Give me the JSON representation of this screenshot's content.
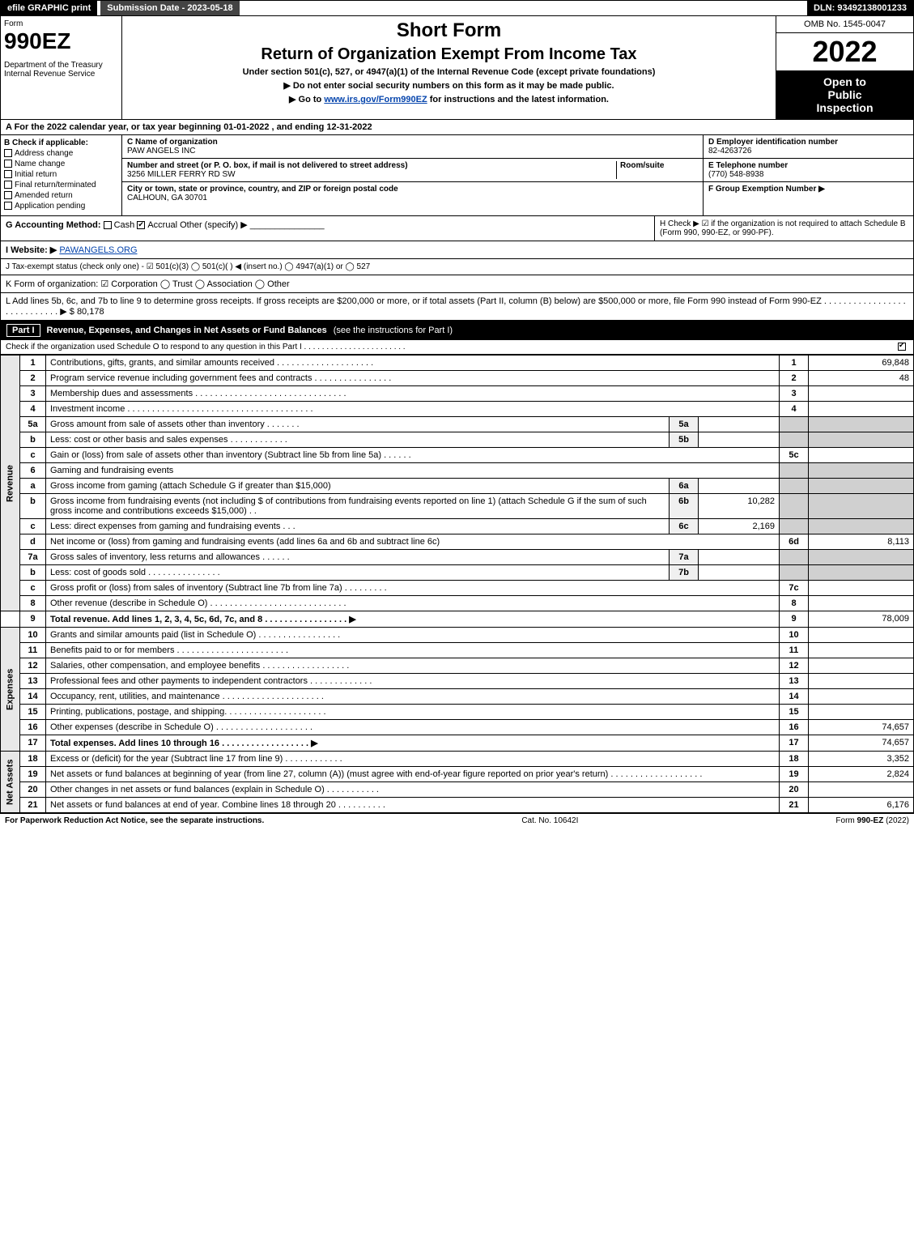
{
  "topbar": {
    "efile": "efile GRAPHIC print",
    "subdate": "Submission Date - 2023-05-18",
    "dln": "DLN: 93492138001233"
  },
  "header": {
    "form_word": "Form",
    "form_num": "990EZ",
    "dept": "Department of the Treasury\nInternal Revenue Service",
    "short_form": "Short Form",
    "return_title": "Return of Organization Exempt From Income Tax",
    "under_section": "Under section 501(c), 527, or 4947(a)(1) of the Internal Revenue Code (except private foundations)",
    "note1": "▶ Do not enter social security numbers on this form as it may be made public.",
    "note2_pre": "▶ Go to ",
    "note2_link": "www.irs.gov/Form990EZ",
    "note2_post": " for instructions and the latest information.",
    "omb": "OMB No. 1545-0047",
    "year": "2022",
    "open1": "Open to",
    "open2": "Public",
    "open3": "Inspection"
  },
  "line_a": "A  For the 2022 calendar year, or tax year beginning 01-01-2022  , and ending 12-31-2022",
  "section_b": {
    "hdr": "B  Check if applicable:",
    "opts": [
      "Address change",
      "Name change",
      "Initial return",
      "Final return/terminated",
      "Amended return",
      "Application pending"
    ]
  },
  "section_c": {
    "name_lbl": "C Name of organization",
    "name": "PAW ANGELS INC",
    "addr_lbl": "Number and street (or P. O. box, if mail is not delivered to street address)",
    "addr": "3256 MILLER FERRY RD SW",
    "room_lbl": "Room/suite",
    "city_lbl": "City or town, state or province, country, and ZIP or foreign postal code",
    "city": "CALHOUN, GA  30701"
  },
  "section_def": {
    "d_lbl": "D Employer identification number",
    "d_val": "82-4263726",
    "e_lbl": "E Telephone number",
    "e_val": "(770) 548-8938",
    "f_lbl": "F Group Exemption Number  ▶"
  },
  "section_g": {
    "lbl": "G Accounting Method:",
    "cash": "Cash",
    "accrual": "Accrual",
    "other": "Other (specify) ▶",
    "h_text": "H  Check ▶ ☑ if the organization is not required to attach Schedule B (Form 990, 990-EZ, or 990-PF)."
  },
  "section_i": {
    "lbl": "I Website: ▶",
    "val": "PAWANGELS.ORG"
  },
  "section_j": "J Tax-exempt status (check only one) - ☑ 501(c)(3)  ◯ 501(c)(  ) ◀ (insert no.)  ◯ 4947(a)(1) or  ◯ 527",
  "section_k": "K Form of organization:  ☑ Corporation  ◯ Trust  ◯ Association  ◯ Other",
  "section_l": {
    "text": "L Add lines 5b, 6c, and 7b to line 9 to determine gross receipts. If gross receipts are $200,000 or more, or if total assets (Part II, column (B) below) are $500,000 or more, file Form 990 instead of Form 990-EZ  . . . . . . . . . . . . . . . . . . . . . . . . . . . .  ▶",
    "val": "$ 80,178"
  },
  "part1": {
    "num": "Part I",
    "title": "Revenue, Expenses, and Changes in Net Assets or Fund Balances",
    "rest": "(see the instructions for Part I)",
    "check_o": "Check if the organization used Schedule O to respond to any question in this Part I . . . . . . . . . . . . . . . . . . . . . . .",
    "check_o_checked": true
  },
  "side_labels": {
    "revenue": "Revenue",
    "expenses": "Expenses",
    "net": "Net Assets"
  },
  "lines": {
    "l1": {
      "n": "1",
      "desc": "Contributions, gifts, grants, and similar amounts received  . . . . . . . . . . . . . . . . . . . .",
      "box": "1",
      "val": "69,848"
    },
    "l2": {
      "n": "2",
      "desc": "Program service revenue including government fees and contracts  . . . . . . . . . . . . . . . .",
      "box": "2",
      "val": "48"
    },
    "l3": {
      "n": "3",
      "desc": "Membership dues and assessments  . . . . . . . . . . . . . . . . . . . . . . . . . . . . . . .",
      "box": "3",
      "val": ""
    },
    "l4": {
      "n": "4",
      "desc": "Investment income . . . . . . . . . . . . . . . . . . . . . . . . . . . . . . . . . . . . . .",
      "box": "4",
      "val": ""
    },
    "l5a": {
      "n": "5a",
      "desc": "Gross amount from sale of assets other than inventory  . . . . . . .",
      "sub": "5a",
      "subval": ""
    },
    "l5b": {
      "n": "b",
      "desc": "Less: cost or other basis and sales expenses  . . . . . . . . . . . .",
      "sub": "5b",
      "subval": ""
    },
    "l5c": {
      "n": "c",
      "desc": "Gain or (loss) from sale of assets other than inventory (Subtract line 5b from line 5a)  . . . . . .",
      "box": "5c",
      "val": ""
    },
    "l6": {
      "n": "6",
      "desc": "Gaming and fundraising events"
    },
    "l6a": {
      "n": "a",
      "desc": "Gross income from gaming (attach Schedule G if greater than $15,000)",
      "sub": "6a",
      "subval": ""
    },
    "l6b": {
      "n": "b",
      "desc": "Gross income from fundraising events (not including $                of contributions from fundraising events reported on line 1) (attach Schedule G if the sum of such gross income and contributions exceeds $15,000)    .   .",
      "sub": "6b",
      "subval": "10,282"
    },
    "l6c": {
      "n": "c",
      "desc": "Less: direct expenses from gaming and fundraising events    .   .   .",
      "sub": "6c",
      "subval": "2,169"
    },
    "l6d": {
      "n": "d",
      "desc": "Net income or (loss) from gaming and fundraising events (add lines 6a and 6b and subtract line 6c)",
      "box": "6d",
      "val": "8,113"
    },
    "l7a": {
      "n": "7a",
      "desc": "Gross sales of inventory, less returns and allowances  . . . . . .",
      "sub": "7a",
      "subval": ""
    },
    "l7b": {
      "n": "b",
      "desc": "Less: cost of goods sold        .   .   .   .   .   .   .   .   .   .   .   .   .   .   .",
      "sub": "7b",
      "subval": ""
    },
    "l7c": {
      "n": "c",
      "desc": "Gross profit or (loss) from sales of inventory (Subtract line 7b from line 7a)  . . . . . . . . .",
      "box": "7c",
      "val": ""
    },
    "l8": {
      "n": "8",
      "desc": "Other revenue (describe in Schedule O) . . . . . . . . . . . . . . . . . . . . . . . . . . . .",
      "box": "8",
      "val": ""
    },
    "l9": {
      "n": "9",
      "desc": "Total revenue. Add lines 1, 2, 3, 4, 5c, 6d, 7c, and 8   .  .  .  .  .  .  .  .  .  .  .  .  .  .  .  .  .  ▶",
      "box": "9",
      "val": "78,009"
    },
    "l10": {
      "n": "10",
      "desc": "Grants and similar amounts paid (list in Schedule O)  .   .   .   .   .   .   .   .   .   .   .   .   .   .   .   .   .",
      "box": "10",
      "val": ""
    },
    "l11": {
      "n": "11",
      "desc": "Benefits paid to or for members       .   .   .   .   .   .   .   .   .   .   .   .   .   .   .   .   .   .   .   .   .   .   .",
      "box": "11",
      "val": ""
    },
    "l12": {
      "n": "12",
      "desc": "Salaries, other compensation, and employee benefits .   .   .   .   .   .   .   .   .   .   .   .   .   .   .   .   .   .",
      "box": "12",
      "val": ""
    },
    "l13": {
      "n": "13",
      "desc": "Professional fees and other payments to independent contractors  .   .   .   .   .   .   .   .   .   .   .   .   .",
      "box": "13",
      "val": ""
    },
    "l14": {
      "n": "14",
      "desc": "Occupancy, rent, utilities, and maintenance .   .   .   .   .   .   .   .   .   .   .   .   .   .   .   .   .   .   .   .   .",
      "box": "14",
      "val": ""
    },
    "l15": {
      "n": "15",
      "desc": "Printing, publications, postage, and shipping.   .   .   .   .   .   .   .   .   .   .   .   .   .   .   .   .   .   .   .   .",
      "box": "15",
      "val": ""
    },
    "l16": {
      "n": "16",
      "desc": "Other expenses (describe in Schedule O)     .   .   .   .   .   .   .   .   .   .   .   .   .   .   .   .   .   .   .   .",
      "box": "16",
      "val": "74,657"
    },
    "l17": {
      "n": "17",
      "desc": "Total expenses. Add lines 10 through 16      .   .   .   .   .   .   .   .   .   .   .   .   .   .   .   .   .   .  ▶",
      "box": "17",
      "val": "74,657"
    },
    "l18": {
      "n": "18",
      "desc": "Excess or (deficit) for the year (Subtract line 17 from line 9)        .   .   .   .   .   .   .   .   .   .   .   .",
      "box": "18",
      "val": "3,352"
    },
    "l19": {
      "n": "19",
      "desc": "Net assets or fund balances at beginning of year (from line 27, column (A)) (must agree with end-of-year figure reported on prior year's return) .   .   .   .   .   .   .   .   .   .   .   .   .   .   .   .   .   .   .",
      "box": "19",
      "val": "2,824"
    },
    "l20": {
      "n": "20",
      "desc": "Other changes in net assets or fund balances (explain in Schedule O) .   .   .   .   .   .   .   .   .   .   .",
      "box": "20",
      "val": ""
    },
    "l21": {
      "n": "21",
      "desc": "Net assets or fund balances at end of year. Combine lines 18 through 20 .   .   .   .   .   .   .   .   .   .",
      "box": "21",
      "val": "6,176"
    }
  },
  "footer": {
    "left": "For Paperwork Reduction Act Notice, see the separate instructions.",
    "mid": "Cat. No. 10642I",
    "right_pre": "Form ",
    "right_bold": "990-EZ",
    "right_post": " (2022)"
  },
  "colors": {
    "black": "#000000",
    "white": "#ffffff",
    "grey_cell": "#d0d0d0",
    "grey_light": "#f0f0f0",
    "link": "#0645ad"
  }
}
